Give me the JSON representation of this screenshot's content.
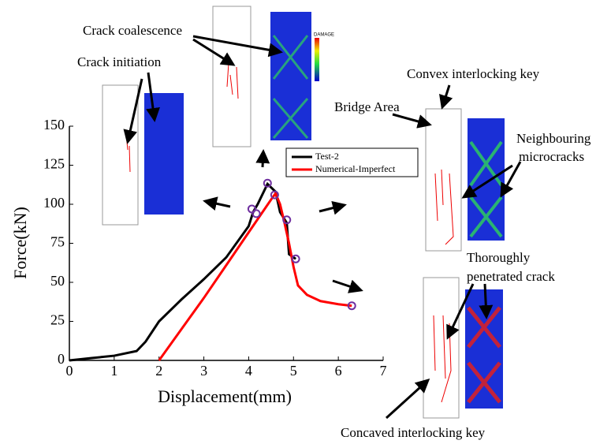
{
  "chart_data": {
    "type": "line",
    "xlabel": "Displacement(mm)",
    "ylabel": "Force(kN)",
    "xlim": [
      0,
      7
    ],
    "ylim": [
      0,
      150
    ],
    "xticks": [
      0,
      1,
      2,
      3,
      4,
      5,
      6,
      7
    ],
    "yticks": [
      0,
      25,
      50,
      75,
      100,
      125,
      150
    ],
    "series": [
      {
        "name": "Test-2",
        "color": "#000000",
        "x": [
          0,
          0.5,
          1,
          1.5,
          1.7,
          2,
          2.5,
          3,
          3.5,
          4,
          4.1,
          4.2,
          4.42,
          4.6,
          4.7,
          4.85,
          4.9,
          5.05
        ],
        "values": [
          0,
          1.5,
          3,
          6,
          12,
          25,
          39,
          52,
          66,
          86,
          95,
          100,
          113,
          108,
          95,
          88,
          68,
          65
        ]
      },
      {
        "name": "Numerical-Imperfect",
        "color": "#ff0000",
        "x": [
          2,
          2.5,
          3,
          3.5,
          4,
          4.5,
          4.6,
          4.7,
          4.8,
          4.9,
          5,
          5.1,
          5.3,
          5.6,
          6,
          6.3
        ],
        "values": [
          0,
          20,
          40,
          61,
          82,
          103,
          107,
          100,
          88,
          75,
          60,
          48,
          42,
          38,
          36,
          35
        ]
      }
    ],
    "markers": {
      "color": "#7030a0",
      "x": [
        4.07,
        4.17,
        4.42,
        4.58,
        4.85,
        5.05,
        6.3
      ],
      "values": [
        97,
        94,
        113.5,
        106,
        90,
        65,
        35
      ]
    },
    "inset_legend_title": "DAMAGE",
    "annotations": [
      "Crack coalescence",
      "Crack initiation",
      "Convex interlocking key",
      "Bridge Area",
      "Neighbouring",
      "microcracks",
      "Thoroughly",
      "penetrated crack",
      "Concaved interlocking key"
    ]
  }
}
